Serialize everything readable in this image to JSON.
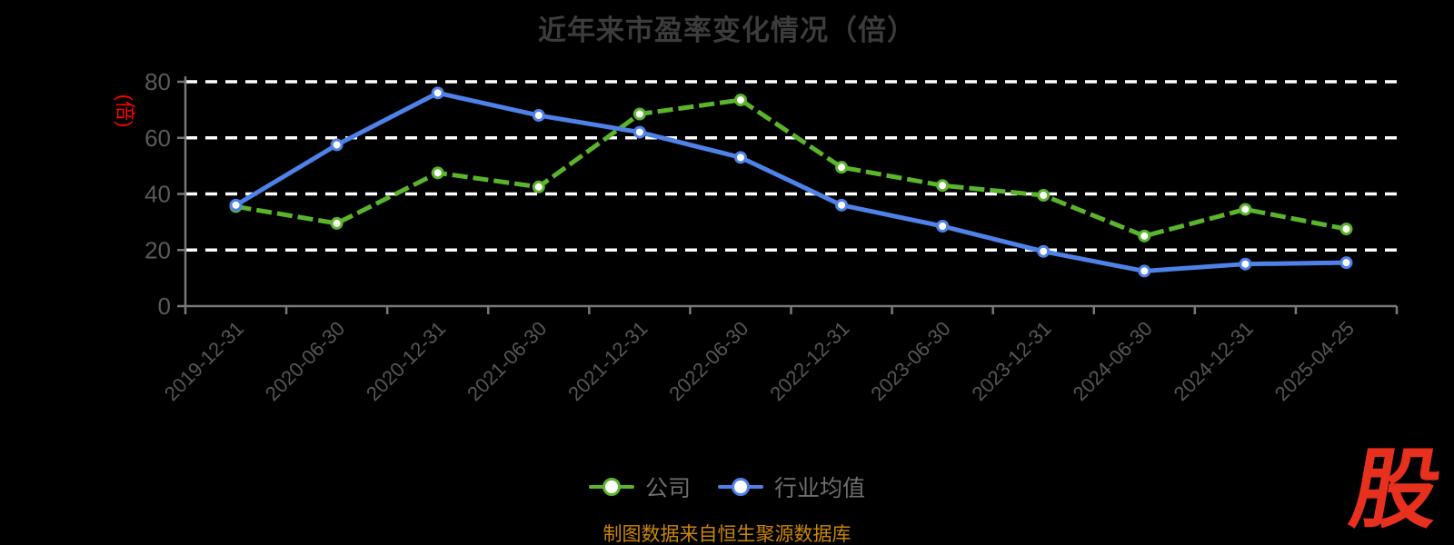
{
  "title": "近年来市盈率变化情况（倍）",
  "y_axis_name": "(倍)",
  "legend": {
    "items": [
      {
        "label": "公司",
        "color": "#5ab42c"
      },
      {
        "label": "行业均值",
        "color": "#4f82e8"
      }
    ]
  },
  "footer": {
    "source_note": "制图数据来自恒生聚源数据库"
  },
  "watermark": {
    "text": "股",
    "color": "#e8301e"
  },
  "colors": {
    "background": "#000000",
    "gridline": "#ffffff",
    "axis_line": "#787878",
    "y_tick_label": "#5a5a5a",
    "x_tick_label": "#565656",
    "title": "#3c3c3c",
    "legend_text": "#6e6e6e",
    "source_note": "#c8860a",
    "y_axis_name": "#ff0000",
    "marker_fill": "#ffffff"
  },
  "chart_data": {
    "type": "line",
    "title": "近年来市盈率变化情况（倍）",
    "xlabel": "",
    "ylabel": "(倍)",
    "ylim": [
      0,
      80
    ],
    "y_ticks": [
      0,
      20,
      40,
      60,
      80
    ],
    "grid": true,
    "grid_style": "dashed-white-horizontal",
    "legend_position": "bottom",
    "categories": [
      "2019-12-31",
      "2020-06-30",
      "2020-12-31",
      "2021-06-30",
      "2021-12-31",
      "2022-06-30",
      "2022-12-31",
      "2023-06-30",
      "2023-12-31",
      "2024-06-30",
      "2024-12-31",
      "2025-04-25"
    ],
    "series": [
      {
        "name": "公司",
        "color": "#5ab42c",
        "line_style": "dashed",
        "marker": "circle-white-fill",
        "values": [
          35.5,
          29.5,
          47.5,
          42.5,
          68.5,
          73.5,
          49.5,
          43,
          39.5,
          25,
          34.5,
          27.5
        ]
      },
      {
        "name": "行业均值",
        "color": "#4f82e8",
        "line_style": "solid",
        "marker": "circle-white-fill",
        "values": [
          36,
          57.5,
          76,
          68,
          62,
          53,
          36,
          28.5,
          19.5,
          12.5,
          15,
          15.5
        ]
      }
    ]
  }
}
